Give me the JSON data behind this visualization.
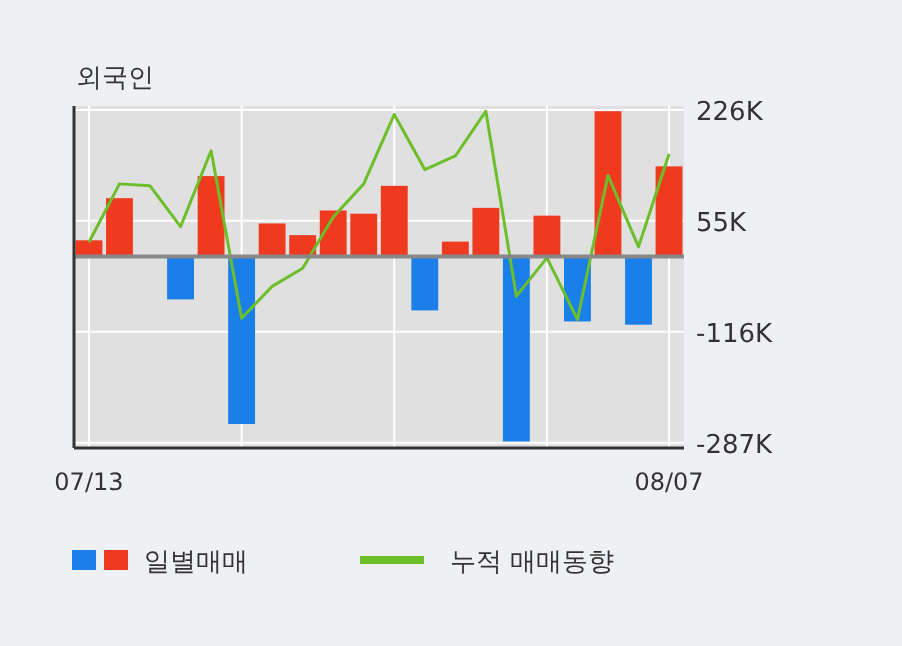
{
  "chart_data": {
    "type": "bar",
    "title": "외국인",
    "categories": [
      "07/13",
      null,
      null,
      null,
      null,
      null,
      null,
      null,
      null,
      null,
      null,
      null,
      null,
      null,
      null,
      null,
      null,
      null,
      null,
      "08/07"
    ],
    "series": [
      {
        "name": "일별매매",
        "colors": [
          "#f03a1f",
          "#f03a1f",
          "#f03a1f",
          "#1a7fe8",
          "#f03a1f",
          "#1a7fe8",
          "#f03a1f",
          "#f03a1f",
          "#f03a1f",
          "#f03a1f",
          "#f03a1f",
          "#1a7fe8",
          "#f03a1f",
          "#f03a1f",
          "#1a7fe8",
          "#f03a1f",
          "#1a7fe8",
          "#f03a1f",
          "#1a7fe8",
          "#f03a1f"
        ],
        "values": [
          25,
          90,
          0,
          -66,
          124,
          -258,
          51,
          33,
          71,
          66,
          109,
          -83,
          23,
          75,
          -285,
          63,
          -100,
          224,
          -105,
          139
        ]
      },
      {
        "name": "누적 매매동향",
        "type": "line",
        "color": "#6cbf2a",
        "values": [
          22,
          112,
          109,
          46,
          163,
          -95,
          -46,
          -18,
          61,
          112,
          219,
          134,
          155,
          224,
          -61,
          -2,
          -97,
          125,
          15,
          158
        ]
      }
    ],
    "ylim": [
      -295,
      232
    ],
    "yticks": [
      {
        "value": 226,
        "label": "226K"
      },
      {
        "value": 55,
        "label": "55K"
      },
      {
        "value": -116,
        "label": "-116K"
      },
      {
        "value": -287,
        "label": "-287K"
      }
    ],
    "grid": true,
    "legend": "bottom"
  }
}
